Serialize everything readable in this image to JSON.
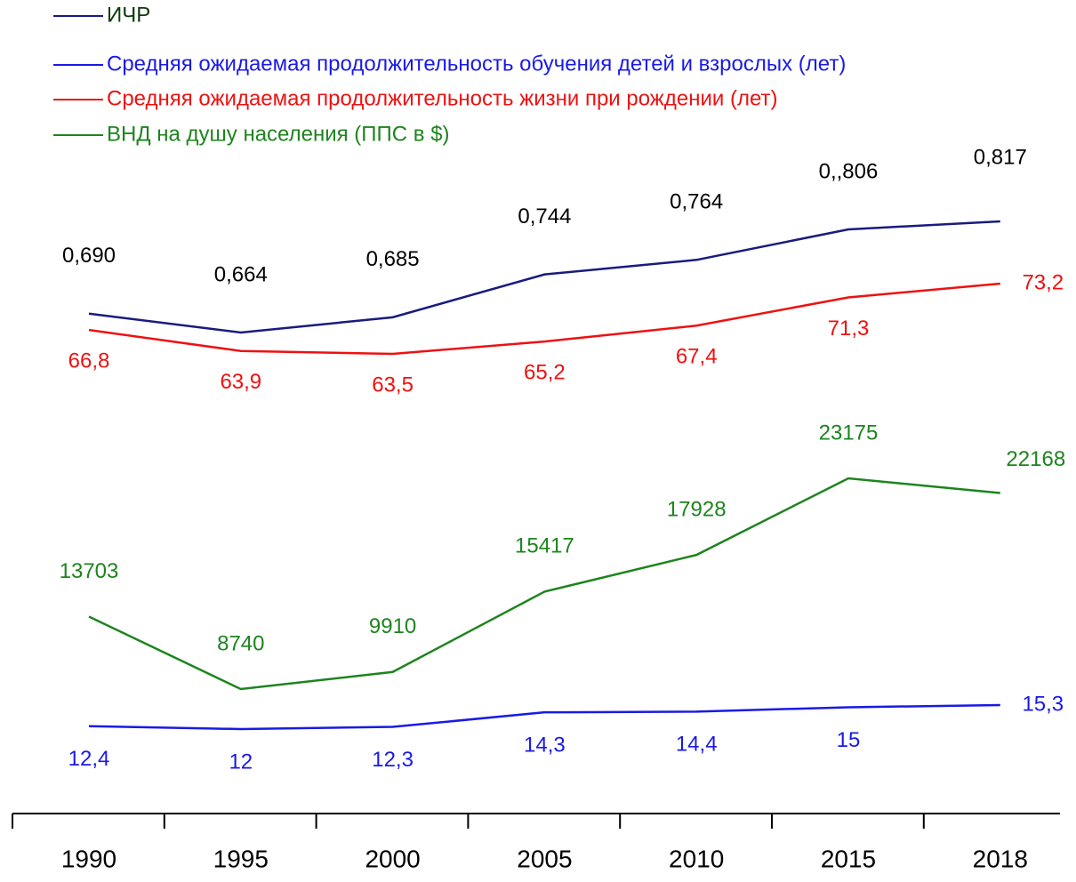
{
  "chart_data": {
    "type": "line",
    "categories": [
      "1990",
      "1995",
      "2000",
      "2005",
      "2010",
      "2015",
      "2018"
    ],
    "series": [
      {
        "name": "ИЧР",
        "color": "#1a1a80",
        "values": [
          0.69,
          0.664,
          0.685,
          0.744,
          0.764,
          0.806,
          0.817
        ],
        "value_labels": [
          "0,690",
          "0,664",
          "0,685",
          "0,744",
          "0,764",
          "0,,806",
          "0,817"
        ]
      },
      {
        "name": "Средняя ожидаемая продолжительность обучения детей  и взрослых (лет)",
        "color": "#1a1ae6",
        "values": [
          12.4,
          12,
          12.3,
          14.3,
          14.4,
          15,
          15.3
        ],
        "value_labels": [
          "12,4",
          "12",
          "12,3",
          "14,3",
          "14,4",
          "15",
          "15,3"
        ]
      },
      {
        "name": "Средняя ожидаемая продолжительность жизни при рождении (лет)",
        "color": "#ee1111",
        "values": [
          66.8,
          63.9,
          63.5,
          65.2,
          67.4,
          71.3,
          73.2
        ],
        "value_labels": [
          "66,8",
          "63,9",
          "63,5",
          "65,2",
          "67,4",
          "71,3",
          "73,2"
        ]
      },
      {
        "name": "ВНД на душу населения (ППС в $)",
        "color": "#1e841e",
        "values": [
          13703,
          8740,
          9910,
          15417,
          17928,
          23175,
          22168
        ]
      }
    ]
  }
}
